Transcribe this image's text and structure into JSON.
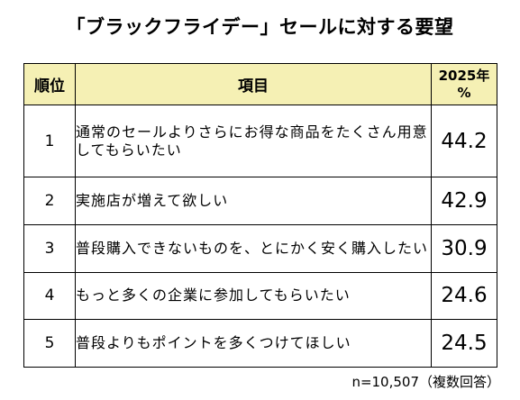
{
  "chart_data": {
    "type": "table",
    "title": "「ブラックフライデー」セールに対する要望",
    "columns": [
      "順位",
      "項目",
      "2025年 %"
    ],
    "rows": [
      {
        "rank": "1",
        "item": "通常のセールよりさらにお得な商品をたくさん用意してもらいたい",
        "value": 44.2
      },
      {
        "rank": "2",
        "item": "実施店が増えて欲しい",
        "value": 42.9
      },
      {
        "rank": "3",
        "item": "普段購入できないものを、とにかく安く購入したい",
        "value": 30.9
      },
      {
        "rank": "4",
        "item": "もっと多くの企業に参加してもらいたい",
        "value": 24.6
      },
      {
        "rank": "5",
        "item": "普段よりもポイントを多くつけてほしい",
        "value": 24.5
      }
    ],
    "note": "n=10,507（複数回答）"
  }
}
